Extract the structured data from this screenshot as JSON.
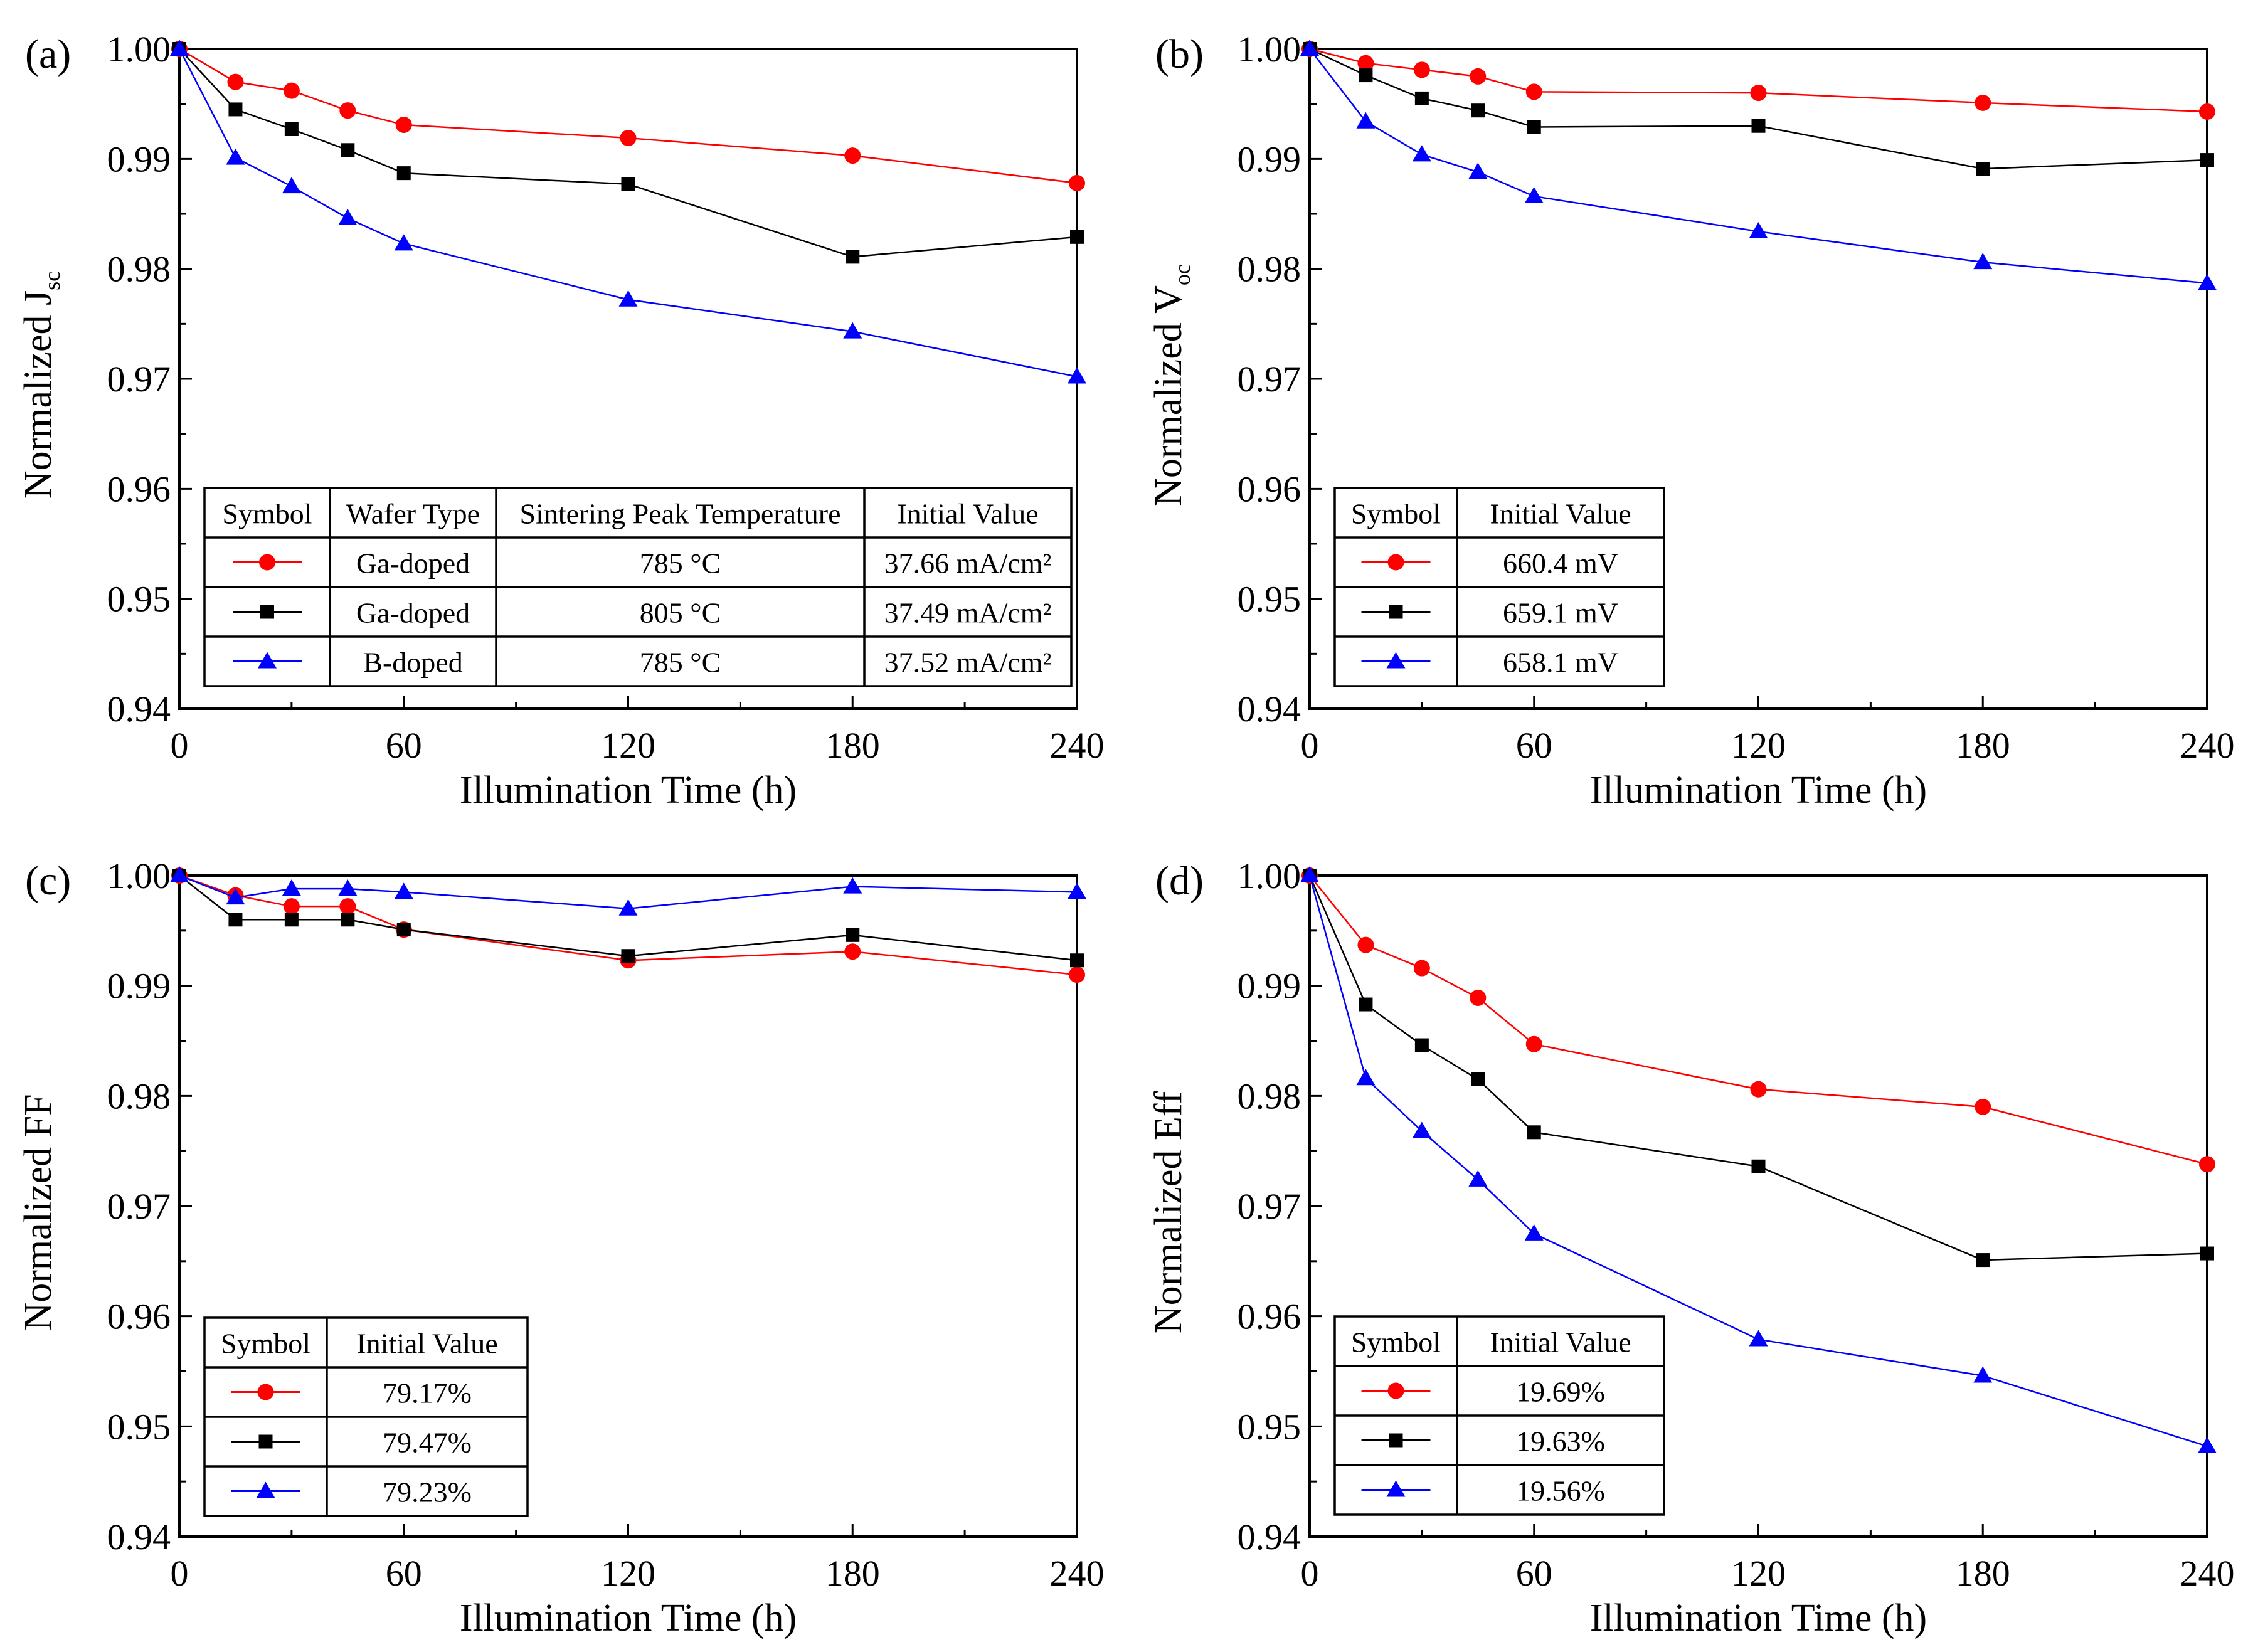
{
  "chart_data": [
    {
      "type": "line",
      "panel_label": "(a)",
      "xlabel": "Illumination Time (h)",
      "ylabel": "Normalized J",
      "ylabel_sub": "sc",
      "xlim": [
        0,
        240
      ],
      "ylim": [
        0.94,
        1.0
      ],
      "xticks": [
        "0",
        "60",
        "120",
        "180",
        "240"
      ],
      "yticks": [
        "0.94",
        "0.95",
        "0.96",
        "0.97",
        "0.98",
        "0.99",
        "1.00"
      ],
      "x": [
        0,
        15,
        30,
        45,
        60,
        120,
        180,
        240
      ],
      "series": [
        {
          "name": "Ga-doped 785 °C",
          "marker": "circle",
          "color": "#ff0000",
          "values": [
            1.0,
            0.997,
            0.9962,
            0.9944,
            0.9931,
            0.9919,
            0.9903,
            0.9878
          ]
        },
        {
          "name": "Ga-doped 805 °C",
          "marker": "square",
          "color": "#000000",
          "values": [
            1.0,
            0.9945,
            0.9927,
            0.9908,
            0.9887,
            0.9877,
            0.9811,
            0.9829
          ]
        },
        {
          "name": "B-doped 785 °C",
          "marker": "triangle",
          "color": "#0000ff",
          "values": [
            1.0,
            0.9901,
            0.9875,
            0.9846,
            0.9823,
            0.9772,
            0.9743,
            0.9702
          ]
        }
      ],
      "legend_table": {
        "headers": [
          "Symbol",
          "Wafer Type",
          "Sintering Peak Temperature",
          "Initial Value"
        ],
        "rows": [
          [
            "",
            "Ga-doped",
            "785 °C",
            "37.66 mA/cm²"
          ],
          [
            "",
            "Ga-doped",
            "805 °C",
            "37.49 mA/cm²"
          ],
          [
            "",
            "B-doped",
            "785 °C",
            "37.52 mA/cm²"
          ]
        ]
      }
    },
    {
      "type": "line",
      "panel_label": "(b)",
      "xlabel": "Illumination Time (h)",
      "ylabel": "Normalized V",
      "ylabel_sub": "oc",
      "xlim": [
        0,
        240
      ],
      "ylim": [
        0.94,
        1.0
      ],
      "xticks": [
        "0",
        "60",
        "120",
        "180",
        "240"
      ],
      "yticks": [
        "0.94",
        "0.95",
        "0.96",
        "0.97",
        "0.98",
        "0.99",
        "1.00"
      ],
      "x": [
        0,
        15,
        30,
        45,
        60,
        120,
        180,
        240
      ],
      "series": [
        {
          "name": "Ga-doped 785 °C",
          "marker": "circle",
          "color": "#ff0000",
          "values": [
            1.0,
            0.9987,
            0.9981,
            0.9975,
            0.9961,
            0.996,
            0.9951,
            0.9943
          ]
        },
        {
          "name": "Ga-doped 805 °C",
          "marker": "square",
          "color": "#000000",
          "values": [
            1.0,
            0.9976,
            0.9955,
            0.9944,
            0.9929,
            0.993,
            0.9891,
            0.9899
          ]
        },
        {
          "name": "B-doped 785 °C",
          "marker": "triangle",
          "color": "#0000ff",
          "values": [
            1.0,
            0.9934,
            0.9904,
            0.9888,
            0.9866,
            0.9834,
            0.9806,
            0.9787
          ]
        }
      ],
      "legend_table": {
        "headers": [
          "Symbol",
          "Initial Value"
        ],
        "rows": [
          [
            "",
            "660.4 mV"
          ],
          [
            "",
            "659.1 mV"
          ],
          [
            "",
            "658.1 mV"
          ]
        ]
      }
    },
    {
      "type": "line",
      "panel_label": "(c)",
      "xlabel": "Illumination Time (h)",
      "ylabel": "Normalized FF",
      "ylabel_sub": "",
      "xlim": [
        0,
        240
      ],
      "ylim": [
        0.94,
        1.0
      ],
      "xticks": [
        "0",
        "60",
        "120",
        "180",
        "240"
      ],
      "yticks": [
        "0.94",
        "0.95",
        "0.96",
        "0.97",
        "0.98",
        "0.99",
        "1.00"
      ],
      "x": [
        0,
        15,
        30,
        45,
        60,
        120,
        180,
        240
      ],
      "series": [
        {
          "name": "Ga-doped 785 °C",
          "marker": "circle",
          "color": "#ff0000",
          "values": [
            1.0,
            0.9982,
            0.9972,
            0.9972,
            0.9951,
            0.9923,
            0.9931,
            0.991
          ]
        },
        {
          "name": "Ga-doped 805 °C",
          "marker": "square",
          "color": "#000000",
          "values": [
            1.0,
            0.996,
            0.996,
            0.996,
            0.9951,
            0.9927,
            0.9946,
            0.9923
          ]
        },
        {
          "name": "B-doped 785 °C",
          "marker": "triangle",
          "color": "#0000ff",
          "values": [
            1.0,
            0.998,
            0.9988,
            0.9988,
            0.9985,
            0.997,
            0.999,
            0.9985
          ]
        }
      ],
      "legend_table": {
        "headers": [
          "Symbol",
          "Initial Value"
        ],
        "rows": [
          [
            "",
            "79.17%"
          ],
          [
            "",
            "79.47%"
          ],
          [
            "",
            "79.23%"
          ]
        ]
      }
    },
    {
      "type": "line",
      "panel_label": "(d)",
      "xlabel": "Illumination Time (h)",
      "ylabel": "Normalized Eff",
      "ylabel_sub": "",
      "xlim": [
        0,
        240
      ],
      "ylim": [
        0.94,
        1.0
      ],
      "xticks": [
        "0",
        "60",
        "120",
        "180",
        "240"
      ],
      "yticks": [
        "0.94",
        "0.95",
        "0.96",
        "0.97",
        "0.98",
        "0.99",
        "1.00"
      ],
      "x": [
        0,
        15,
        30,
        45,
        60,
        120,
        180,
        240
      ],
      "series": [
        {
          "name": "Ga-doped 785 °C",
          "marker": "circle",
          "color": "#ff0000",
          "values": [
            1.0,
            0.9937,
            0.9916,
            0.9889,
            0.9847,
            0.9806,
            0.979,
            0.9738
          ]
        },
        {
          "name": "Ga-doped 805 °C",
          "marker": "square",
          "color": "#000000",
          "values": [
            1.0,
            0.9883,
            0.9846,
            0.9815,
            0.9767,
            0.9736,
            0.9651,
            0.9657
          ]
        },
        {
          "name": "B-doped 785 °C",
          "marker": "triangle",
          "color": "#0000ff",
          "values": [
            1.0,
            0.9816,
            0.9768,
            0.9724,
            0.9675,
            0.9579,
            0.9546,
            0.9482
          ]
        }
      ],
      "legend_table": {
        "headers": [
          "Symbol",
          "Initial Value"
        ],
        "rows": [
          [
            "",
            "19.69%"
          ],
          [
            "",
            "19.63%"
          ],
          [
            "",
            "19.56%"
          ]
        ]
      }
    }
  ]
}
